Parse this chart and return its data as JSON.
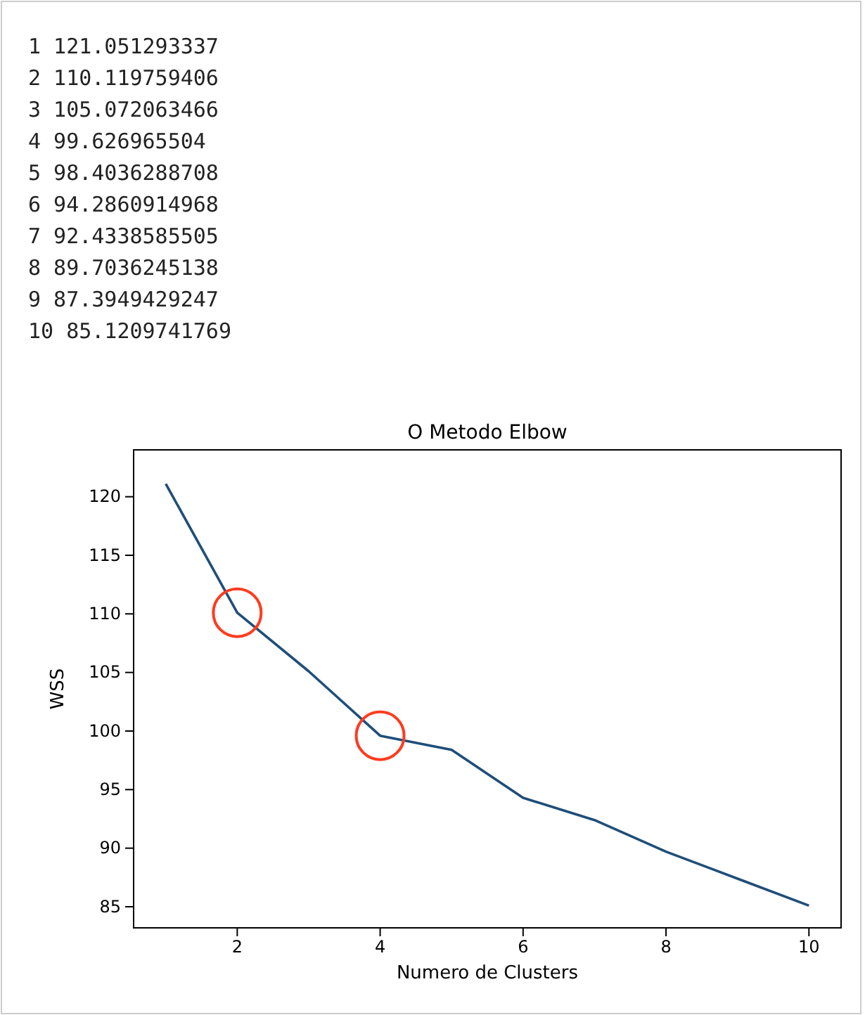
{
  "chart_data": {
    "type": "line",
    "title": "O Metodo Elbow",
    "xlabel": "Numero de Clusters",
    "ylabel": "WSS",
    "annotations": [
      "1 121.051293337",
      "2 110.119759406",
      "3 105.072063466",
      "4 99.626965504",
      "5 98.4036288708",
      "6 94.2860914968",
      "7 92.4338585505",
      "8 89.7036245138",
      "9 87.3949429247",
      "10 85.1209741769"
    ],
    "x": [
      1,
      2,
      3,
      4,
      5,
      6,
      7,
      8,
      9,
      10
    ],
    "series": [
      {
        "color": "#1f4e79",
        "values": [
          121.1,
          110.1,
          105.1,
          99.6,
          98.4,
          94.3,
          92.4,
          89.7,
          87.4,
          85.1
        ]
      }
    ],
    "xlim": [
      0.55,
      10.45
    ],
    "xticks": [
      2,
      4,
      6,
      8,
      10
    ],
    "ylim": [
      83.2,
      124.0
    ],
    "yticks": [
      85,
      90,
      95,
      100,
      105,
      110,
      115,
      120
    ],
    "grid": false,
    "marker": "none",
    "line_style": "solid"
  }
}
